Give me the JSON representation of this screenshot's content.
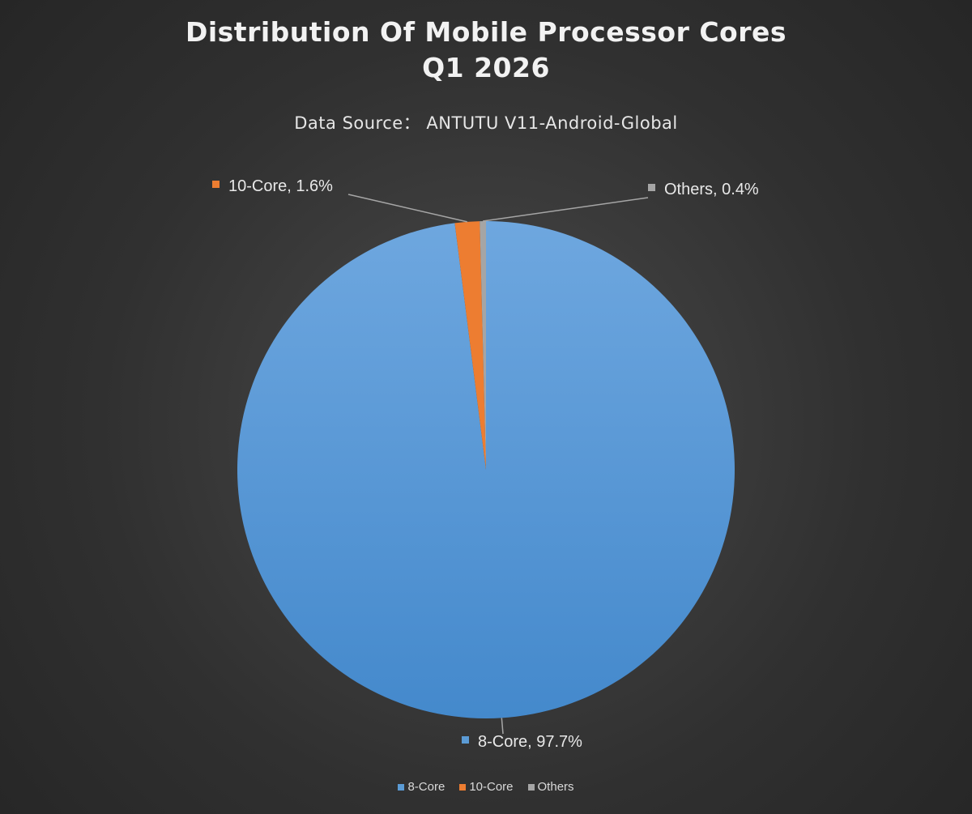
{
  "chart_data": {
    "type": "pie",
    "title_lines": [
      "Distribution Of Mobile Processor Cores",
      "Q1 2026"
    ],
    "subtitle": "Data Source： ANTUTU V11-Android-Global",
    "slices": [
      {
        "name": "8-Core",
        "value": 97.7,
        "label": "8-Core, 97.7%",
        "color": "#5b9bd5"
      },
      {
        "name": "10-Core",
        "value": 1.6,
        "label": "10-Core, 1.6%",
        "color": "#ed7d31"
      },
      {
        "name": "Others",
        "value": 0.4,
        "label": "Others, 0.4%",
        "color": "#a5a5a5"
      }
    ],
    "legend_position": "bottom"
  }
}
